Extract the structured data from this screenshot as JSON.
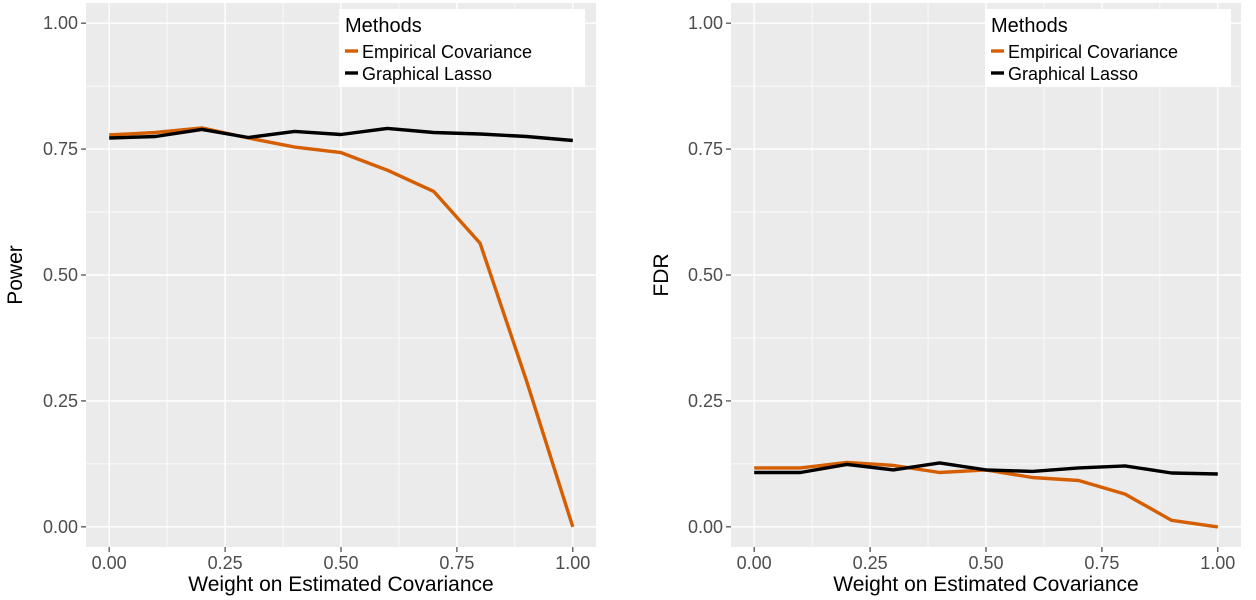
{
  "chart_data": [
    {
      "type": "line",
      "xlabel": "Weight on Estimated Covariance",
      "ylabel": "Power",
      "xlim": [
        -0.05,
        1.05
      ],
      "ylim": [
        -0.04,
        1.04
      ],
      "x_ticks": [
        "0.00",
        "0.25",
        "0.50",
        "0.75",
        "1.00"
      ],
      "y_ticks": [
        "0.00",
        "0.25",
        "0.50",
        "0.75",
        "1.00"
      ],
      "x_tick_values": [
        0,
        0.25,
        0.5,
        0.75,
        1.0
      ],
      "y_tick_values": [
        0,
        0.25,
        0.5,
        0.75,
        1.0
      ],
      "grid": true,
      "legend_placement": "top-right",
      "legend_title": "Methods",
      "x": [
        0,
        0.1,
        0.2,
        0.3,
        0.4,
        0.5,
        0.6,
        0.7,
        0.8,
        0.9,
        1.0
      ],
      "series": [
        {
          "name": "Empirical Covariance",
          "color": "#d55e00",
          "values": [
            0.778,
            0.783,
            0.792,
            0.772,
            0.754,
            0.743,
            0.708,
            0.666,
            0.563,
            0.29,
            0.0
          ]
        },
        {
          "name": "Graphical Lasso",
          "color": "#000000",
          "values": [
            0.772,
            0.775,
            0.789,
            0.773,
            0.785,
            0.779,
            0.791,
            0.783,
            0.78,
            0.775,
            0.767
          ]
        }
      ]
    },
    {
      "type": "line",
      "xlabel": "Weight on Estimated Covariance",
      "ylabel": "FDR",
      "xlim": [
        -0.05,
        1.05
      ],
      "ylim": [
        -0.04,
        1.04
      ],
      "x_ticks": [
        "0.00",
        "0.25",
        "0.50",
        "0.75",
        "1.00"
      ],
      "y_ticks": [
        "0.00",
        "0.25",
        "0.50",
        "0.75",
        "1.00"
      ],
      "x_tick_values": [
        0,
        0.25,
        0.5,
        0.75,
        1.0
      ],
      "y_tick_values": [
        0,
        0.25,
        0.5,
        0.75,
        1.0
      ],
      "grid": true,
      "legend_placement": "top-right",
      "legend_title": "Methods",
      "x": [
        0,
        0.1,
        0.2,
        0.3,
        0.4,
        0.5,
        0.6,
        0.7,
        0.8,
        0.9,
        1.0
      ],
      "series": [
        {
          "name": "Empirical Covariance",
          "color": "#d55e00",
          "values": [
            0.117,
            0.117,
            0.128,
            0.122,
            0.108,
            0.113,
            0.098,
            0.092,
            0.065,
            0.013,
            0.0
          ]
        },
        {
          "name": "Graphical Lasso",
          "color": "#000000",
          "values": [
            0.108,
            0.108,
            0.124,
            0.113,
            0.127,
            0.113,
            0.11,
            0.117,
            0.121,
            0.107,
            0.105
          ]
        }
      ]
    }
  ]
}
